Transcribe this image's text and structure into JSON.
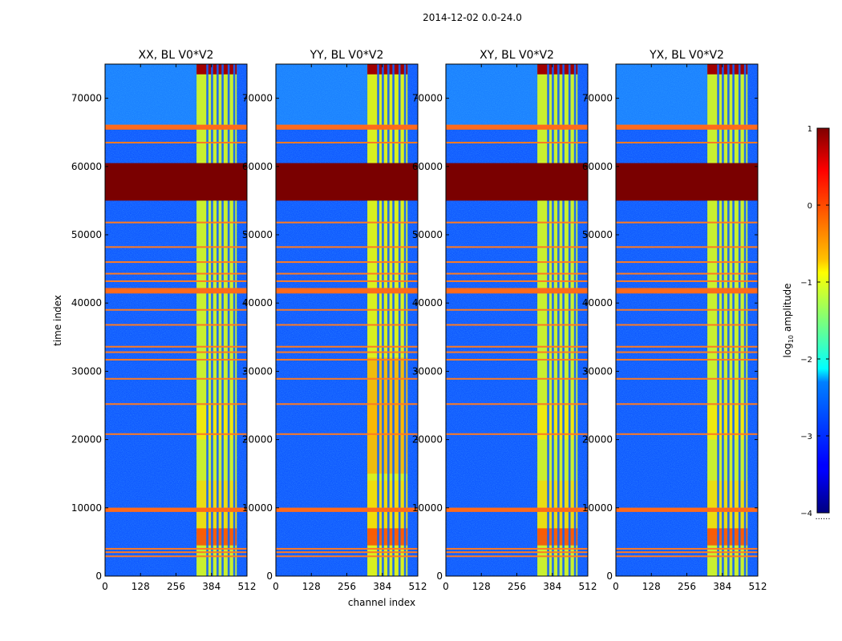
{
  "figure": {
    "suptitle": "2014-12-02 0.0-24.0",
    "xlabel": "channel index",
    "ylabel": "time index",
    "colorbar_label_prefix": "log",
    "colorbar_label_sub": "10",
    "colorbar_label_suffix": " amplitude",
    "colorbar_footer": "......"
  },
  "chart_data": {
    "type": "heatmap",
    "colormap": "jet",
    "colorscale": {
      "label": "log10 amplitude",
      "range": [
        -4,
        1
      ],
      "ticks": [
        1,
        0,
        -1,
        -2,
        -3,
        -4
      ]
    },
    "xlim": [
      0,
      512
    ],
    "ylim": [
      0,
      75000
    ],
    "xticks": [
      0,
      128,
      256,
      384,
      512
    ],
    "yticks": [
      0,
      10000,
      20000,
      30000,
      40000,
      50000,
      60000,
      70000
    ],
    "panels": [
      {
        "title": "XX, BL V0*V2",
        "key": "XX"
      },
      {
        "title": "YY, BL V0*V2",
        "key": "YY"
      },
      {
        "title": "XY, BL V0*V2",
        "key": "XY"
      },
      {
        "title": "YX, BL V0*V2",
        "key": "YX"
      }
    ],
    "features": {
      "saturated_block_time_range": [
        55000,
        60500
      ],
      "flagged_time_rows": [
        2900,
        3500,
        4000,
        9600,
        9900,
        20800,
        25200,
        28900,
        31700,
        32800,
        33600,
        36800,
        39000,
        41600,
        42000,
        43200,
        44300,
        46000,
        48200,
        51800,
        63500,
        65600,
        66000
      ],
      "bright_channel_band": [
        330,
        475
      ],
      "dark_channel_gaps": [
        369,
        386,
        406,
        424,
        446,
        466
      ]
    }
  }
}
